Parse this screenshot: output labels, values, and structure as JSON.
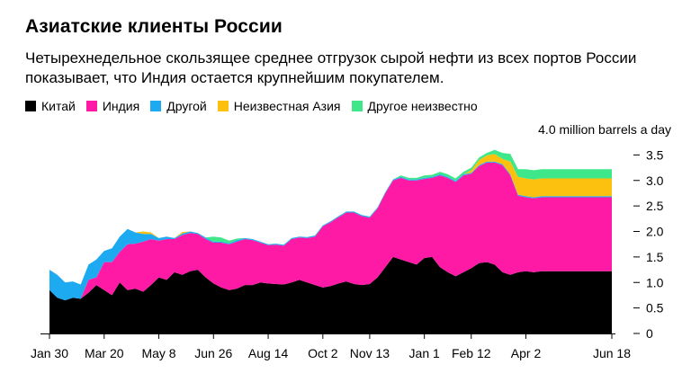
{
  "title": "Азиатские клиенты России",
  "subtitle": "Четырехнедельное скользящее среднее отгрузок сырой нефти из всех портов России показывает, что Индия остается крупнейшим покупателем.",
  "unit_label": "4.0 million barrels a day",
  "legend": [
    {
      "name": "Китай",
      "color": "#000000"
    },
    {
      "name": "Индия",
      "color": "#ff1aa6"
    },
    {
      "name": "Другой",
      "color": "#1eaaf1"
    },
    {
      "name": "Неизвестная Азия",
      "color": "#fcc10f"
    },
    {
      "name": "Другое неизвестно",
      "color": "#3ee88a"
    }
  ],
  "chart_data": {
    "type": "area",
    "stacked": true,
    "title": "Азиатские клиенты России",
    "ylabel": "4.0 million barrels a day",
    "ylim": [
      0,
      4.0
    ],
    "yticks": [
      "0",
      "0.5",
      "1.0",
      "1.5",
      "2.0",
      "2.5",
      "3.0",
      "3.5"
    ],
    "ytick_values": [
      0,
      0.5,
      1.0,
      1.5,
      2.0,
      2.5,
      3.0,
      3.5
    ],
    "xticks": [
      "Jan 30",
      "Mar 20",
      "May 8",
      "Jun 26",
      "Aug 14",
      "Oct 2",
      "Nov 13",
      "Jan 1",
      "Feb 12",
      "Apr 2",
      "Jun 18"
    ],
    "xtick_weeks": [
      0,
      7,
      14,
      21,
      28,
      35,
      41,
      48,
      54,
      61,
      72
    ],
    "x_weeks": [
      0,
      1,
      2,
      3,
      4,
      5,
      6,
      7,
      8,
      9,
      10,
      11,
      12,
      13,
      14,
      15,
      16,
      17,
      18,
      19,
      20,
      21,
      22,
      23,
      24,
      25,
      26,
      27,
      28,
      29,
      30,
      31,
      32,
      33,
      34,
      35,
      36,
      37,
      38,
      39,
      40,
      41,
      42,
      43,
      44,
      45,
      46,
      47,
      48,
      49,
      50,
      51,
      52,
      53,
      54,
      55,
      56,
      57,
      58,
      59,
      60,
      61,
      62,
      63,
      64,
      65,
      66,
      67,
      68,
      69,
      70,
      71,
      72
    ],
    "series": [
      {
        "name": "Китай",
        "values": [
          0.85,
          0.7,
          0.65,
          0.7,
          0.68,
          0.8,
          0.95,
          0.85,
          0.75,
          1.0,
          0.85,
          0.88,
          0.82,
          0.95,
          1.1,
          1.05,
          1.2,
          1.15,
          1.22,
          1.25,
          1.1,
          0.98,
          0.9,
          0.85,
          0.88,
          0.95,
          0.95,
          1.0,
          0.98,
          0.97,
          0.96,
          1.0,
          1.05,
          1.0,
          0.95,
          0.9,
          0.93,
          0.98,
          1.02,
          0.97,
          0.95,
          0.97,
          1.1,
          1.3,
          1.5,
          1.45,
          1.4,
          1.35,
          1.48,
          1.5,
          1.3,
          1.2,
          1.12,
          1.2,
          1.28,
          1.38,
          1.4,
          1.35,
          1.2,
          1.15,
          1.2,
          1.22,
          1.2,
          1.22,
          1.22,
          1.22,
          1.22,
          1.22,
          1.22,
          1.22,
          1.22,
          1.22,
          1.22
        ]
      },
      {
        "name": "Индия",
        "values": [
          0,
          0,
          0,
          0,
          0,
          0.25,
          0.15,
          0.55,
          0.65,
          0.6,
          0.9,
          0.88,
          0.98,
          0.9,
          0.72,
          0.8,
          0.65,
          0.78,
          0.75,
          0.7,
          0.75,
          0.8,
          0.88,
          0.9,
          0.92,
          0.9,
          0.88,
          0.78,
          0.75,
          0.77,
          0.76,
          0.85,
          0.83,
          0.87,
          0.95,
          1.2,
          1.25,
          1.3,
          1.35,
          1.4,
          1.35,
          1.3,
          1.35,
          1.45,
          1.5,
          1.6,
          1.6,
          1.65,
          1.55,
          1.55,
          1.8,
          1.85,
          1.85,
          1.9,
          1.85,
          1.9,
          1.95,
          2.0,
          2.1,
          1.95,
          1.5,
          1.45,
          1.45,
          1.45,
          1.45,
          1.45,
          1.45,
          1.45,
          1.45,
          1.45,
          1.45,
          1.45,
          1.45
        ]
      },
      {
        "name": "Другой",
        "values": [
          0.4,
          0.45,
          0.35,
          0.32,
          0.28,
          0.3,
          0.35,
          0.22,
          0.27,
          0.3,
          0.3,
          0.22,
          0.15,
          0.1,
          0.05,
          0.05,
          0.02,
          0.03,
          0.03,
          0.02,
          0.03,
          0.02,
          0.02,
          0.02,
          0.03,
          0.02,
          0.02,
          0.02,
          0.02,
          0.02,
          0.02,
          0.02,
          0.02,
          0.02,
          0.02,
          0.02,
          0.02,
          0.02,
          0.02,
          0.02,
          0.02,
          0.02,
          0.02,
          0.02,
          0.02,
          0.02,
          0.02,
          0.02,
          0.02,
          0.02,
          0.02,
          0.02,
          0.02,
          0.02,
          0.02,
          0.02,
          0.02,
          0.02,
          0.02,
          0.02,
          0.02,
          0.02,
          0.02,
          0.02,
          0.02,
          0.02,
          0.02,
          0.02,
          0.02,
          0.02,
          0.02,
          0.02,
          0.02
        ]
      },
      {
        "name": "Неизвестная Азия",
        "values": [
          0,
          0,
          0,
          0,
          0,
          0,
          0,
          0,
          0,
          0,
          0,
          0,
          0.05,
          0.03,
          0,
          0,
          0,
          0.03,
          0,
          0,
          0,
          0,
          0,
          0,
          0,
          0,
          0,
          0,
          0,
          0,
          0,
          0,
          0,
          0,
          0,
          0,
          0,
          0,
          0,
          0,
          0,
          0,
          0,
          0,
          0,
          0,
          0,
          0,
          0,
          0,
          0,
          0,
          0,
          0,
          0.05,
          0.1,
          0.12,
          0.15,
          0.1,
          0.25,
          0.35,
          0.35,
          0.35,
          0.35,
          0.35,
          0.35,
          0.35,
          0.35,
          0.35,
          0.35,
          0.35,
          0.35,
          0.35
        ]
      },
      {
        "name": "Другое неизвестно",
        "values": [
          0,
          0,
          0,
          0,
          0,
          0,
          0,
          0,
          0,
          0,
          0,
          0,
          0,
          0,
          0,
          0,
          0,
          0,
          0,
          0,
          0,
          0.1,
          0.08,
          0.05,
          0.03,
          0,
          0,
          0,
          0,
          0,
          0,
          0,
          0,
          0,
          0,
          0,
          0,
          0,
          0,
          0,
          0,
          0,
          0,
          0,
          0,
          0.03,
          0.03,
          0.03,
          0.05,
          0.04,
          0.05,
          0.05,
          0.05,
          0.05,
          0.05,
          0.05,
          0.05,
          0.08,
          0.12,
          0.15,
          0.15,
          0.18,
          0.18,
          0.18,
          0.18,
          0.18,
          0.18,
          0.18,
          0.18,
          0.18,
          0.18,
          0.18,
          0.18
        ]
      }
    ]
  }
}
